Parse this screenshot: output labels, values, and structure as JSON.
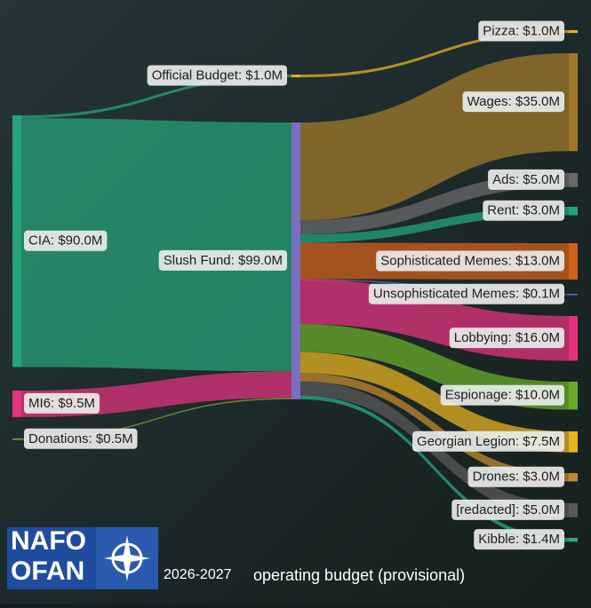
{
  "chart_data": {
    "type": "sankey",
    "nodes": [
      {
        "label": "CIA: $90.0M",
        "value": 90,
        "color": "#27a27a"
      },
      {
        "label": "MI6: $9.5M",
        "value": 9.5,
        "color": "#e2337f"
      },
      {
        "label": "Donations: $0.5M",
        "value": 0.5,
        "color": "#7aa83a"
      },
      {
        "label": "Official Budget: $1.0M",
        "value": 1,
        "color": "#e0a81f"
      },
      {
        "label": "Slush Fund: $99.0M",
        "value": 99,
        "color": "#7a6fc0"
      },
      {
        "label": "Pizza: $1.0M",
        "value": 1,
        "color": "#e6b01e"
      },
      {
        "label": "Wages: $35.0M",
        "value": 35,
        "color": "#a07a2a"
      },
      {
        "label": "Ads: $5.0M",
        "value": 5,
        "color": "#6a6a6a"
      },
      {
        "label": "Rent: $3.0M",
        "value": 3,
        "color": "#22a67c"
      },
      {
        "label": "Sophisticated Memes: $13.0M",
        "value": 13,
        "color": "#d2621b"
      },
      {
        "label": "Unsophisticated Memes: $0.1M",
        "value": 0.1,
        "color": "#6b5fd0"
      },
      {
        "label": "Lobbying: $16.0M",
        "value": 16,
        "color": "#e3337f"
      },
      {
        "label": "Espionage: $10.0M",
        "value": 10,
        "color": "#6aab2b"
      },
      {
        "label": "Georgian Legion: $7.5M",
        "value": 7.5,
        "color": "#e6b220"
      },
      {
        "label": "Drones: $3.0M",
        "value": 3,
        "color": "#c08a2c"
      },
      {
        "label": "[redacted]: $5.0M",
        "value": 5,
        "color": "#5a5a5a"
      },
      {
        "label": "Kibble: $1.4M",
        "value": 1.4,
        "color": "#2aa88a"
      }
    ],
    "links": [
      {
        "source": 0,
        "target": 3,
        "value": 1
      },
      {
        "source": 0,
        "target": 4,
        "value": 89
      },
      {
        "source": 1,
        "target": 4,
        "value": 9.5
      },
      {
        "source": 2,
        "target": 4,
        "value": 0.5
      },
      {
        "source": 3,
        "target": 5,
        "value": 1
      },
      {
        "source": 4,
        "target": 6,
        "value": 35
      },
      {
        "source": 4,
        "target": 7,
        "value": 5
      },
      {
        "source": 4,
        "target": 8,
        "value": 3
      },
      {
        "source": 4,
        "target": 9,
        "value": 13
      },
      {
        "source": 4,
        "target": 10,
        "value": 0.1
      },
      {
        "source": 4,
        "target": 11,
        "value": 16
      },
      {
        "source": 4,
        "target": 12,
        "value": 10
      },
      {
        "source": 4,
        "target": 13,
        "value": 7.5
      },
      {
        "source": 4,
        "target": 14,
        "value": 3
      },
      {
        "source": 4,
        "target": 15,
        "value": 5
      },
      {
        "source": 4,
        "target": 16,
        "value": 1.4
      }
    ]
  },
  "footer": {
    "logo_top": "NAFO",
    "logo_bottom": "OFAN",
    "years": "2026-2027",
    "caption": "operating budget (provisional)"
  }
}
